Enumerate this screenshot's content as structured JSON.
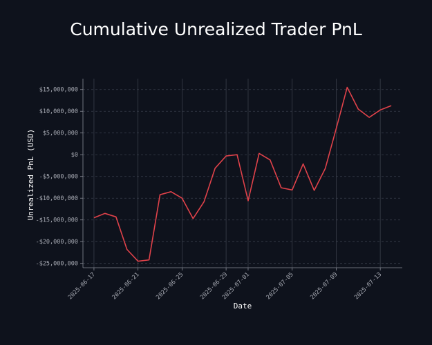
{
  "chart_data": {
    "type": "line",
    "title": "Cumulative Unrealized Trader PnL",
    "xlabel": "Date",
    "ylabel": "Unrealized PnL (USD)",
    "ylim": [
      -26000000,
      17500000
    ],
    "xlim": [
      "2025-06-16",
      "2025-07-15"
    ],
    "grid": {
      "x": "solid",
      "y": "dashed"
    },
    "line_color": "#e0424a",
    "x_ticks": [
      "2025-06-17",
      "2025-06-21",
      "2025-06-25",
      "2025-06-29",
      "2025-07-01",
      "2025-07-05",
      "2025-07-09",
      "2025-07-13"
    ],
    "y_ticks": [
      {
        "value": 15000000,
        "label": "$15,000,000"
      },
      {
        "value": 10000000,
        "label": "$10,000,000"
      },
      {
        "value": 5000000,
        "label": "$5,000,000"
      },
      {
        "value": 0,
        "label": "$0"
      },
      {
        "value": -5000000,
        "label": "-$5,000,000"
      },
      {
        "value": -10000000,
        "label": "-$10,000,000"
      },
      {
        "value": -15000000,
        "label": "-$15,000,000"
      },
      {
        "value": -20000000,
        "label": "-$20,000,000"
      },
      {
        "value": -25000000,
        "label": "-$25,000,000"
      }
    ],
    "series": [
      {
        "points": [
          [
            "2025-06-17",
            -14500000
          ],
          [
            "2025-06-18",
            -13500000
          ],
          [
            "2025-06-19",
            -14300000
          ],
          [
            "2025-06-20",
            -21800000
          ],
          [
            "2025-06-21",
            -24500000
          ],
          [
            "2025-06-22",
            -24200000
          ],
          [
            "2025-06-23",
            -9200000
          ],
          [
            "2025-06-24",
            -8500000
          ],
          [
            "2025-06-25",
            -10000000
          ],
          [
            "2025-06-26",
            -14700000
          ],
          [
            "2025-06-27",
            -10800000
          ],
          [
            "2025-06-28",
            -3100000
          ],
          [
            "2025-06-29",
            -300000
          ],
          [
            "2025-06-30",
            0
          ],
          [
            "2025-07-01",
            -10600000
          ],
          [
            "2025-07-02",
            300000
          ],
          [
            "2025-07-03",
            -1200000
          ],
          [
            "2025-07-04",
            -7600000
          ],
          [
            "2025-07-05",
            -8100000
          ],
          [
            "2025-07-06",
            -2100000
          ],
          [
            "2025-07-07",
            -8200000
          ],
          [
            "2025-07-08",
            -3200000
          ],
          [
            "2025-07-09",
            6000000
          ],
          [
            "2025-07-10",
            15500000
          ],
          [
            "2025-07-11",
            10500000
          ],
          [
            "2025-07-12",
            8600000
          ],
          [
            "2025-07-13",
            10300000
          ],
          [
            "2025-07-14",
            11300000
          ]
        ]
      }
    ]
  }
}
